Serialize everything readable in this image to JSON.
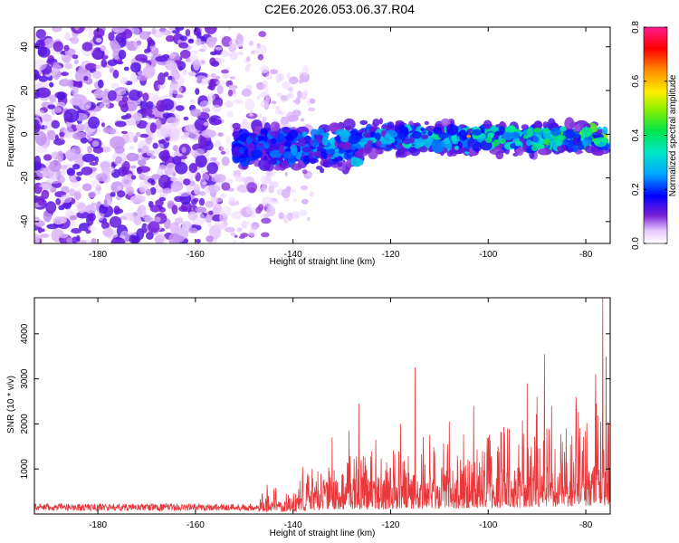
{
  "title": "C2E6.2026.053.06.37.R04",
  "chart_data": [
    {
      "type": "heatmap",
      "xlabel": "Height of straight line (km)",
      "ylabel": "Frequency (Hz)",
      "xlim": [
        -193,
        -75
      ],
      "ylim": [
        -50,
        49
      ],
      "xticks": [
        -180,
        -160,
        -140,
        -120,
        -100,
        -80
      ],
      "yticks": [
        -40,
        -20,
        0,
        20,
        40
      ],
      "colorbar": {
        "label": "Normalized spectral amplitude",
        "range": [
          0.0,
          0.8
        ],
        "ticks": [
          "0.0",
          "0.2",
          "0.4",
          "0.6",
          "0.8"
        ]
      },
      "description_regions": [
        {
          "x_range": [
            -193,
            -155
          ],
          "freq_range": [
            -50,
            49
          ],
          "amplitude": [
            0.0,
            0.1
          ],
          "pattern": "dense broadband noise"
        },
        {
          "x_range": [
            -155,
            -145
          ],
          "freq_range": [
            -50,
            49
          ],
          "amplitude": [
            0.0,
            0.08
          ],
          "pattern": "sparse noise"
        },
        {
          "x_range": [
            -152,
            -76
          ],
          "freq_range": [
            -15,
            5
          ],
          "amplitude": [
            0.1,
            0.65
          ],
          "pattern": "narrow band centred near -2 Hz"
        }
      ],
      "peak": {
        "x": -104,
        "freq": -1,
        "amplitude": 0.62
      }
    },
    {
      "type": "line",
      "xlabel": "Height of straight line (km)",
      "ylabel": "SNR (10 * v/v)",
      "xlim": [
        -193,
        -75
      ],
      "ylim": [
        0,
        4800
      ],
      "xticks": [
        -180,
        -160,
        -140,
        -120,
        -100,
        -80
      ],
      "yticks": [
        1000,
        2000,
        3000,
        4000
      ],
      "series": [
        {
          "name": "SNR",
          "color": "#e8383b",
          "baseline": [
            [
              -193,
              150
            ],
            [
              -170,
              150
            ],
            [
              -150,
              160
            ],
            [
              -145,
              260
            ],
            [
              -140,
              380
            ],
            [
              -135,
              520
            ],
            [
              -130,
              600
            ],
            [
              -125,
              660
            ],
            [
              -120,
              680
            ],
            [
              -115,
              720
            ],
            [
              -110,
              780
            ],
            [
              -105,
              820
            ],
            [
              -100,
              860
            ],
            [
              -95,
              920
            ],
            [
              -90,
              1020
            ],
            [
              -85,
              1080
            ],
            [
              -80,
              1120
            ],
            [
              -76,
              1250
            ]
          ],
          "peaks": [
            [
              -145.3,
              650
            ],
            [
              -138,
              1050
            ],
            [
              -132,
              1700
            ],
            [
              -128.5,
              1850
            ],
            [
              -126.5,
              2450
            ],
            [
              -123,
              1650
            ],
            [
              -118,
              2000
            ],
            [
              -115,
              3250
            ],
            [
              -112,
              1750
            ],
            [
              -108,
              2050
            ],
            [
              -103,
              2400
            ],
            [
              -100,
              1700
            ],
            [
              -96,
              1900
            ],
            [
              -92,
              2900
            ],
            [
              -90,
              2600
            ],
            [
              -88.5,
              3550
            ],
            [
              -87,
              2400
            ],
            [
              -84,
              1900
            ],
            [
              -82,
              2600
            ],
            [
              -78,
              3100
            ],
            [
              -76.5,
              4850
            ],
            [
              -75.8,
              3500
            ]
          ]
        }
      ]
    }
  ]
}
